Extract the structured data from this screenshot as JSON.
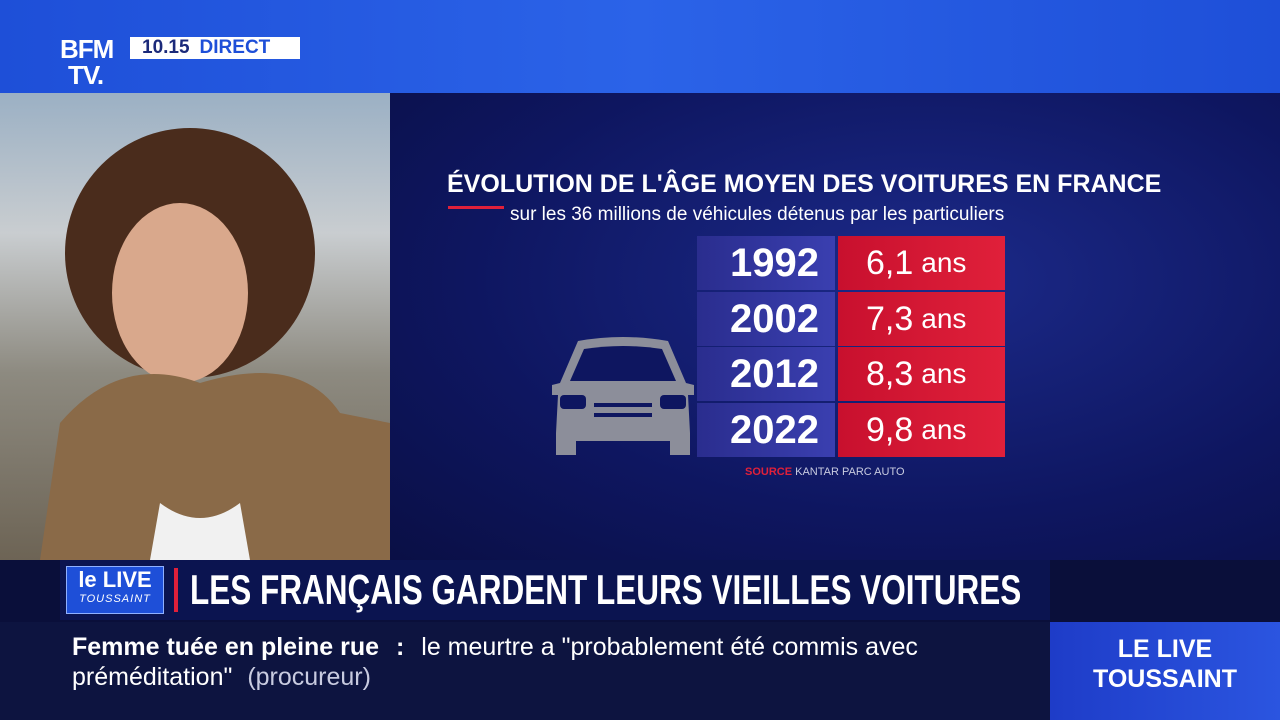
{
  "header": {
    "logo_top": "BFM",
    "logo_bottom": "TV.",
    "time": "10.15",
    "live": "DIRECT"
  },
  "graphic": {
    "title": "ÉVOLUTION DE L'ÂGE MOYEN DES VOITURES EN FRANCE",
    "subtitle": "sur les 36 millions de véhicules détenus par les particuliers",
    "table": {
      "rows": [
        [
          "1992",
          "6,1",
          "ans"
        ],
        [
          "2002",
          "7,3",
          "ans"
        ],
        [
          "2012",
          "8,3",
          "ans"
        ],
        [
          "2022",
          "9,8",
          "ans"
        ]
      ]
    },
    "source_label": "SOURCE",
    "source": "KANTAR PARC AUTO"
  },
  "banner": {
    "badge_top": "le LIVE",
    "badge_bottom": "TOUSSAINT",
    "headline": "LES FRANÇAIS GARDENT LEURS VIEILLES VOITURES"
  },
  "ticker": {
    "topic": "Femme tuée en pleine rue",
    "separator": ":",
    "text": "le meurtre a \"probablement été commis avec préméditation\"",
    "attribution": "(procureur)"
  },
  "corner": {
    "line1": "LE LIVE",
    "line2": "TOUSSAINT"
  }
}
